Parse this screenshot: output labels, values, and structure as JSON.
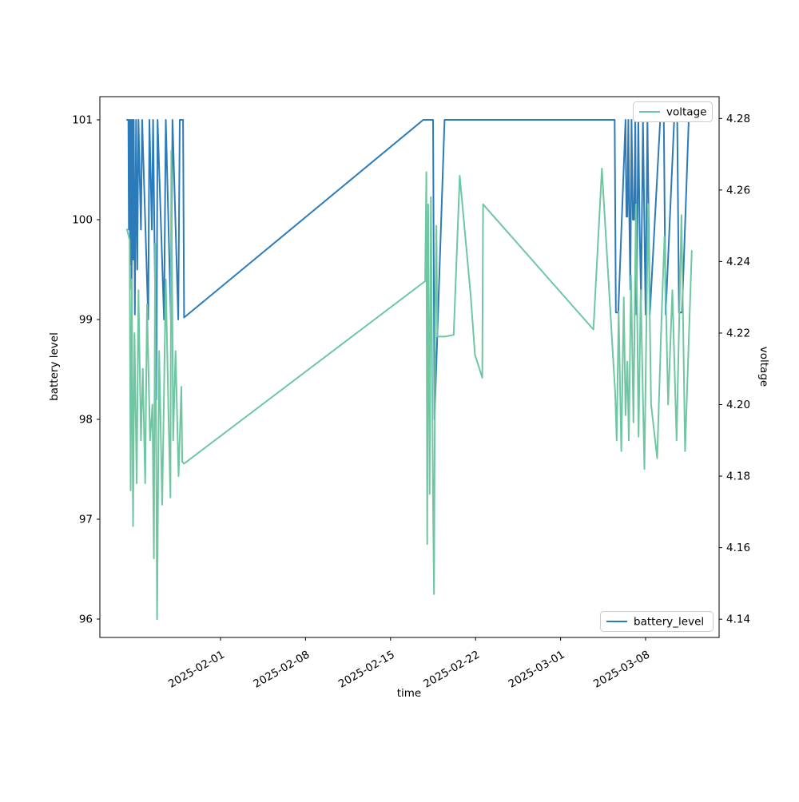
{
  "figure_background": "#ffffff",
  "chart_data": {
    "type": "line",
    "title": "",
    "xlabel": "time",
    "ylabel_left": "battery level",
    "ylabel_right": "voltage",
    "x_epoch": "2025-01-24",
    "x_unit": "days since 2025-01-24",
    "x_range_days": [
      -1.93,
      49.05
    ],
    "x_ticks": [
      {
        "t": 8,
        "label": "2025-02-01"
      },
      {
        "t": 15,
        "label": "2025-02-08"
      },
      {
        "t": 22,
        "label": "2025-02-15"
      },
      {
        "t": 29,
        "label": "2025-02-22"
      },
      {
        "t": 36,
        "label": "2025-03-01"
      },
      {
        "t": 43,
        "label": "2025-03-08"
      }
    ],
    "y_left": {
      "range": [
        95.816,
        101.232
      ],
      "ticks": [
        96,
        97,
        98,
        99,
        100,
        101
      ]
    },
    "y_right": {
      "range": [
        4.1349,
        4.2861
      ],
      "ticks": [
        4.14,
        4.16,
        4.18,
        4.2,
        4.22,
        4.24,
        4.26,
        4.28
      ]
    },
    "grid": false,
    "legends": [
      {
        "label": "voltage",
        "position": "upper right"
      },
      {
        "label": "battery_level",
        "position": "lower right"
      }
    ],
    "series": [
      {
        "name": "battery_level",
        "axis": "left",
        "color": "#2b7bba",
        "points": [
          [
            0.3,
            101
          ],
          [
            0.42,
            101
          ],
          [
            0.46,
            99.9
          ],
          [
            0.5,
            101
          ],
          [
            0.56,
            99.55
          ],
          [
            0.62,
            101
          ],
          [
            0.68,
            99.3
          ],
          [
            0.74,
            101
          ],
          [
            0.8,
            99.6
          ],
          [
            0.86,
            101
          ],
          [
            0.95,
            99.05
          ],
          [
            1.05,
            101
          ],
          [
            1.15,
            99.5
          ],
          [
            1.25,
            101
          ],
          [
            1.45,
            99.9
          ],
          [
            1.55,
            101
          ],
          [
            2.05,
            99.0
          ],
          [
            2.15,
            101
          ],
          [
            2.35,
            99.9
          ],
          [
            2.45,
            101
          ],
          [
            2.72,
            98.2
          ],
          [
            2.82,
            101
          ],
          [
            3.35,
            99.0
          ],
          [
            3.5,
            101
          ],
          [
            3.92,
            99.0
          ],
          [
            4.05,
            101
          ],
          [
            4.52,
            99.0
          ],
          [
            4.65,
            101
          ],
          [
            4.92,
            101
          ],
          [
            5.0,
            99.02
          ],
          [
            24.7,
            101
          ],
          [
            25.5,
            101
          ],
          [
            25.62,
            98.0
          ],
          [
            26.45,
            101
          ],
          [
            40.45,
            101
          ],
          [
            40.55,
            99.07
          ],
          [
            40.75,
            99.07
          ],
          [
            41.35,
            101
          ],
          [
            41.42,
            100.03
          ],
          [
            41.5,
            100.03
          ],
          [
            41.58,
            101
          ],
          [
            41.66,
            100.0
          ],
          [
            41.74,
            99.3
          ],
          [
            41.84,
            101
          ],
          [
            41.95,
            100.0
          ],
          [
            42.05,
            100.0
          ],
          [
            42.15,
            101
          ],
          [
            42.25,
            99.05
          ],
          [
            42.4,
            101
          ],
          [
            42.5,
            100.0
          ],
          [
            42.62,
            99.2
          ],
          [
            42.78,
            101
          ],
          [
            43.0,
            99.05
          ],
          [
            43.15,
            101
          ],
          [
            43.35,
            99.05
          ],
          [
            44.2,
            101
          ],
          [
            44.5,
            101
          ],
          [
            44.65,
            99.05
          ],
          [
            45.35,
            101
          ],
          [
            45.6,
            101
          ],
          [
            45.75,
            99.07
          ],
          [
            46.0,
            99.07
          ],
          [
            46.55,
            101
          ],
          [
            46.65,
            101
          ]
        ]
      },
      {
        "name": "voltage",
        "axis": "right",
        "color": "#6fc7a2",
        "points": [
          [
            0.3,
            4.249
          ],
          [
            0.52,
            4.246
          ],
          [
            0.6,
            4.176
          ],
          [
            0.7,
            4.235
          ],
          [
            0.8,
            4.166
          ],
          [
            0.92,
            4.22
          ],
          [
            1.1,
            4.178
          ],
          [
            1.25,
            4.232
          ],
          [
            1.45,
            4.19
          ],
          [
            1.6,
            4.21
          ],
          [
            1.8,
            4.178
          ],
          [
            1.95,
            4.228
          ],
          [
            2.2,
            4.19
          ],
          [
            2.4,
            4.2
          ],
          [
            2.52,
            4.157
          ],
          [
            2.62,
            4.245
          ],
          [
            2.78,
            4.14
          ],
          [
            2.95,
            4.215
          ],
          [
            3.2,
            4.172
          ],
          [
            3.5,
            4.235
          ],
          [
            3.7,
            4.2
          ],
          [
            3.88,
            4.174
          ],
          [
            3.95,
            4.271
          ],
          [
            4.1,
            4.19
          ],
          [
            4.3,
            4.215
          ],
          [
            4.55,
            4.18
          ],
          [
            4.78,
            4.205
          ],
          [
            4.85,
            4.184
          ],
          [
            5.0,
            4.1835
          ],
          [
            24.85,
            4.2345
          ],
          [
            24.95,
            4.265
          ],
          [
            25.02,
            4.161
          ],
          [
            25.1,
            4.256
          ],
          [
            25.22,
            4.175
          ],
          [
            25.32,
            4.258
          ],
          [
            25.5,
            4.172
          ],
          [
            25.58,
            4.147
          ],
          [
            25.68,
            4.225
          ],
          [
            25.78,
            4.25
          ],
          [
            25.85,
            4.219
          ],
          [
            26.5,
            4.219
          ],
          [
            27.2,
            4.2195
          ],
          [
            27.7,
            4.264
          ],
          [
            28.6,
            4.2305
          ],
          [
            28.95,
            4.214
          ],
          [
            29.55,
            4.2075
          ],
          [
            29.62,
            4.256
          ],
          [
            38.7,
            4.221
          ],
          [
            39.4,
            4.266
          ],
          [
            40.5,
            4.203
          ],
          [
            40.62,
            4.19
          ],
          [
            40.78,
            4.226
          ],
          [
            41.0,
            4.187
          ],
          [
            41.2,
            4.23
          ],
          [
            41.35,
            4.197
          ],
          [
            41.5,
            4.212
          ],
          [
            41.62,
            4.19
          ],
          [
            41.8,
            4.236
          ],
          [
            42.0,
            4.195
          ],
          [
            42.2,
            4.256
          ],
          [
            42.42,
            4.191
          ],
          [
            42.6,
            4.232
          ],
          [
            42.9,
            4.182
          ],
          [
            43.2,
            4.256
          ],
          [
            43.45,
            4.2
          ],
          [
            43.95,
            4.185
          ],
          [
            44.3,
            4.223
          ],
          [
            44.55,
            4.247
          ],
          [
            44.85,
            4.2
          ],
          [
            45.2,
            4.232
          ],
          [
            45.55,
            4.19
          ],
          [
            45.95,
            4.253
          ],
          [
            46.25,
            4.187
          ],
          [
            46.8,
            4.243
          ]
        ]
      }
    ]
  }
}
